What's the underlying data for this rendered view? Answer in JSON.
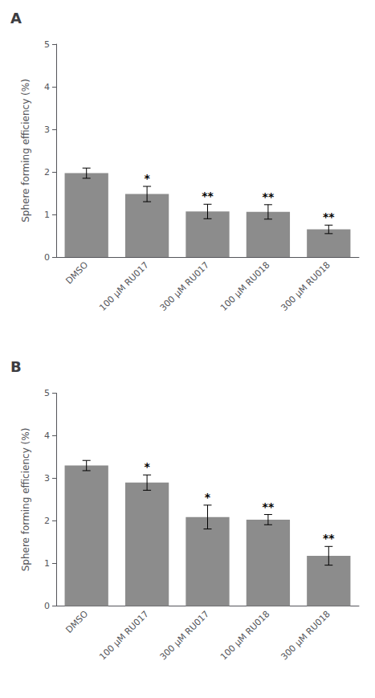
{
  "chart_data": [
    {
      "type": "bar",
      "title": "A",
      "categories": [
        "DMSO",
        "100 μM RU017",
        "300 μM RU017",
        "100 μM RU018",
        "300 μM RU018"
      ],
      "values": [
        1.97,
        1.48,
        1.07,
        1.06,
        0.65
      ],
      "errors": [
        0.12,
        0.18,
        0.17,
        0.17,
        0.1
      ],
      "annotations": [
        null,
        "*",
        "**",
        "**",
        "**"
      ],
      "ylabel": "Sphere forming efficiency (%)",
      "color": "#8c8c8c",
      "ylim": [
        0,
        5
      ],
      "yticks": [
        0,
        1,
        2,
        3,
        4,
        5
      ],
      "grid": false
    },
    {
      "type": "bar",
      "title": "B",
      "categories": [
        "DMSO",
        "100 μM RU017",
        "300 μM RU017",
        "100 μM RU018",
        "300 μM RU018"
      ],
      "values": [
        3.3,
        2.9,
        2.09,
        2.03,
        1.18
      ],
      "errors": [
        0.12,
        0.18,
        0.28,
        0.12,
        0.22
      ],
      "annotations": [
        null,
        "*",
        "*",
        "**",
        "**"
      ],
      "ylabel": "Sphere forming efficiency (%)",
      "color": "#8c8c8c",
      "ylim": [
        0,
        5
      ],
      "yticks": [
        0,
        1,
        2,
        3,
        4,
        5
      ],
      "grid": false
    }
  ]
}
